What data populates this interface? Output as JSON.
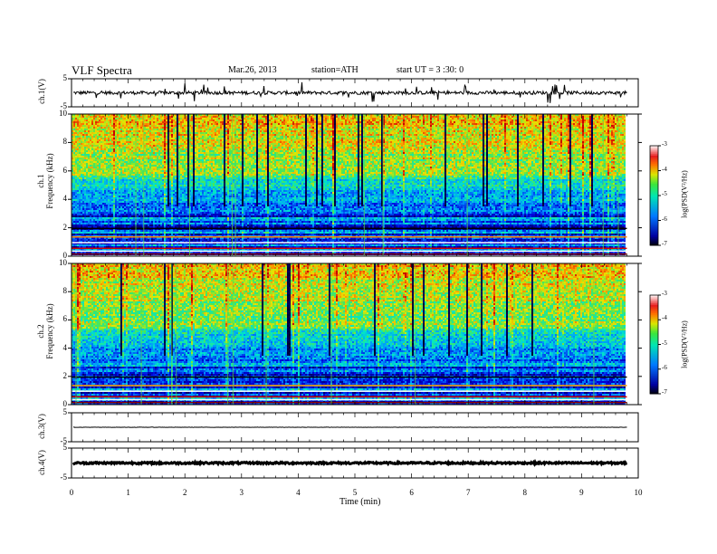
{
  "header": {
    "title": "VLF  Spectra",
    "date": "Mar.26, 2013",
    "station": "station=ATH",
    "start": "start  UT  =   3  :30: 0"
  },
  "chart_data": [
    {
      "type": "line",
      "name": "ch1-waveform",
      "ylabel": "ch.1(V)",
      "ylim": [
        -5,
        5
      ],
      "yticks": [
        "5",
        "-5"
      ],
      "xlim": [
        0,
        10
      ],
      "level": 0.0,
      "noise": 0.6,
      "spikes": "frequent"
    },
    {
      "type": "heatmap",
      "name": "ch1-spectrogram",
      "ylabel": "ch.1\nFrequency (kHz)",
      "ylabel_top": "ch.1",
      "ylabel_bottom": "Frequency (kHz)",
      "ylim": [
        0,
        10
      ],
      "yticks": [
        "0",
        "2",
        "4",
        "6",
        "8",
        "10"
      ],
      "xlim": [
        0,
        10
      ],
      "data_end_min": 9.8,
      "colorbar": {
        "label": "log(PSD(V²/Hz)",
        "range": [
          -7,
          -3
        ],
        "ticks": [
          "-3",
          "-4",
          "-5",
          "-6",
          "-7"
        ]
      }
    },
    {
      "type": "heatmap",
      "name": "ch2-spectrogram",
      "ylabel_top": "ch.2",
      "ylabel_bottom": "Frequency (kHz)",
      "ylim": [
        0,
        10
      ],
      "yticks": [
        "0",
        "2",
        "4",
        "6",
        "8",
        "10"
      ],
      "xlim": [
        0,
        10
      ],
      "data_end_min": 9.8,
      "colorbar": {
        "label": "log(PSD(V²/Hz)",
        "range": [
          -7,
          -3
        ],
        "ticks": [
          "-3",
          "-4",
          "-5",
          "-6",
          "-7"
        ]
      }
    },
    {
      "type": "line",
      "name": "ch3-waveform",
      "ylabel": "ch.3(V)",
      "ylim": [
        -5,
        5
      ],
      "yticks": [
        "5",
        "-5"
      ],
      "xlim": [
        0,
        10
      ],
      "level": 0.0,
      "noise": 0.05
    },
    {
      "type": "line",
      "name": "ch4-waveform",
      "ylabel": "ch.4(V)",
      "ylim": [
        -5,
        5
      ],
      "yticks": [
        "5",
        "-5"
      ],
      "xlim": [
        0,
        10
      ],
      "level": 0.0,
      "noise": 0.3
    }
  ],
  "xaxis": {
    "label": "Time  (min)",
    "ticks": [
      "0",
      "1",
      "2",
      "3",
      "4",
      "5",
      "6",
      "7",
      "8",
      "9",
      "10"
    ],
    "range": [
      0,
      10
    ]
  },
  "colors": {
    "frame": "#000000",
    "trace": "#000000"
  }
}
